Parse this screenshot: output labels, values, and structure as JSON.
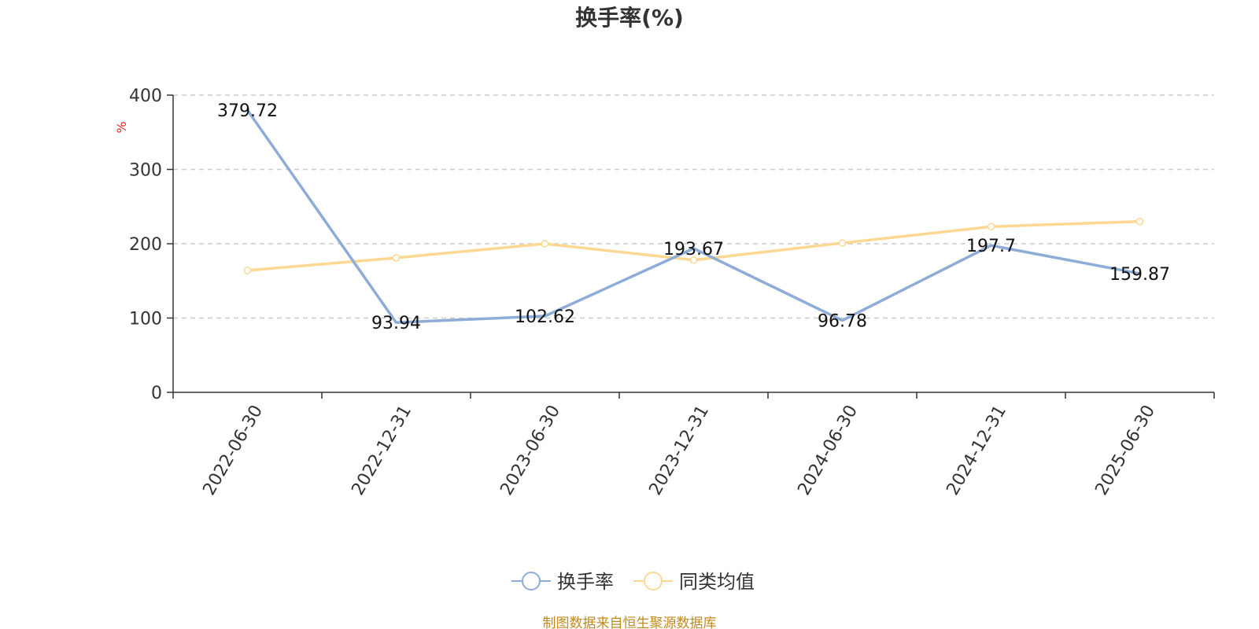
{
  "chart_data": {
    "type": "line",
    "title": "换手率(%)",
    "ylabel": "%",
    "ylim": [
      0,
      400
    ],
    "yticks": [
      0,
      100,
      200,
      300,
      400
    ],
    "categories": [
      "2022-06-30",
      "2022-12-31",
      "2023-06-30",
      "2023-12-31",
      "2024-06-30",
      "2024-12-31",
      "2025-06-30"
    ],
    "series": [
      {
        "name": "换手率",
        "color": "#8eacd8",
        "values": [
          379.72,
          93.94,
          102.62,
          193.67,
          96.78,
          197.7,
          159.87
        ],
        "labels": [
          "379.72",
          "93.94",
          "102.62",
          "193.67",
          "96.78",
          "197.7",
          "159.87"
        ]
      },
      {
        "name": "同类均值",
        "color": "#fcd893",
        "values": [
          164,
          181,
          200,
          178,
          201,
          223,
          230
        ]
      }
    ],
    "grid": true,
    "legend_position": "bottom-center",
    "source": "制图数据来自恒生聚源数据库"
  }
}
